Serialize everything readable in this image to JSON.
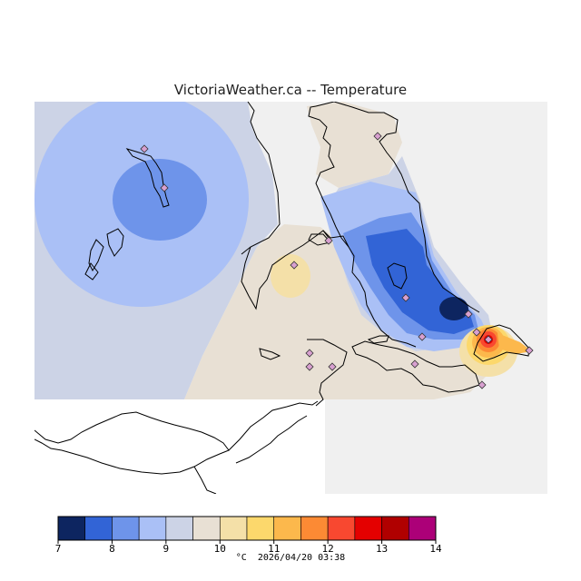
{
  "title": "VictoriaWeather.ca -- Temperature",
  "legend": {
    "unit": "°C",
    "timestamp": "2026/04/20 03:38",
    "ticks": [
      "7",
      "8",
      "9",
      "10",
      "11",
      "12",
      "13",
      "14"
    ],
    "bins": [
      {
        "min": 7.0,
        "max": 7.5,
        "color": "#0d2560"
      },
      {
        "min": 7.5,
        "max": 8.0,
        "color": "#3264d6"
      },
      {
        "min": 8.0,
        "max": 8.5,
        "color": "#6e94ea"
      },
      {
        "min": 8.5,
        "max": 9.0,
        "color": "#aac0f6"
      },
      {
        "min": 9.0,
        "max": 9.5,
        "color": "#ccd3e6"
      },
      {
        "min": 9.5,
        "max": 10.0,
        "color": "#e8e0d4"
      },
      {
        "min": 10.0,
        "max": 10.5,
        "color": "#f4e0a8"
      },
      {
        "min": 10.5,
        "max": 11.0,
        "color": "#fcd86c"
      },
      {
        "min": 11.0,
        "max": 11.5,
        "color": "#fcb84c"
      },
      {
        "min": 11.5,
        "max": 12.0,
        "color": "#fc8a34"
      },
      {
        "min": 12.0,
        "max": 12.5,
        "color": "#f84830"
      },
      {
        "min": 12.5,
        "max": 13.0,
        "color": "#e40000"
      },
      {
        "min": 13.0,
        "max": 13.5,
        "color": "#b00000"
      },
      {
        "min": 13.5,
        "max": 14.0,
        "color": "#ac0078"
      }
    ]
  },
  "colors": {
    "no_data": "#f0f0f0",
    "coastline": "#000000",
    "station_marker": "#d8a0d0"
  }
}
